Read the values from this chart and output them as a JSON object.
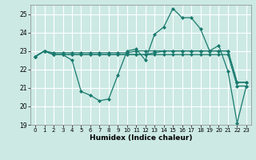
{
  "title": "",
  "xlabel": "Humidex (Indice chaleur)",
  "ylabel": "",
  "background_color": "#cce9e4",
  "grid_color": "#ffffff",
  "line_color": "#1a7a6e",
  "xlim": [
    -0.5,
    23.5
  ],
  "ylim": [
    19,
    25.5
  ],
  "yticks": [
    19,
    20,
    21,
    22,
    23,
    24,
    25
  ],
  "xticks": [
    0,
    1,
    2,
    3,
    4,
    5,
    6,
    7,
    8,
    9,
    10,
    11,
    12,
    13,
    14,
    15,
    16,
    17,
    18,
    19,
    20,
    21,
    22,
    23
  ],
  "series": [
    [
      22.7,
      23.0,
      22.8,
      22.8,
      22.5,
      20.8,
      20.6,
      20.3,
      20.4,
      21.7,
      23.0,
      23.1,
      22.5,
      23.9,
      24.3,
      25.3,
      24.8,
      24.8,
      24.2,
      23.0,
      23.3,
      21.9,
      19.1,
      21.1
    ],
    [
      22.7,
      23.0,
      22.8,
      22.8,
      22.8,
      22.8,
      22.8,
      22.8,
      22.8,
      22.8,
      22.8,
      22.8,
      22.8,
      22.9,
      23.0,
      23.0,
      23.0,
      23.0,
      23.0,
      23.0,
      23.0,
      23.0,
      21.3,
      21.3
    ],
    [
      22.7,
      23.0,
      22.9,
      22.9,
      22.9,
      22.9,
      22.9,
      22.9,
      22.9,
      22.9,
      22.9,
      23.0,
      23.0,
      23.0,
      23.0,
      23.0,
      23.0,
      23.0,
      23.0,
      23.0,
      23.0,
      23.0,
      21.3,
      21.3
    ],
    [
      22.7,
      23.0,
      22.8,
      22.8,
      22.8,
      22.8,
      22.8,
      22.8,
      22.8,
      22.8,
      22.8,
      22.8,
      22.8,
      22.8,
      22.8,
      22.8,
      22.8,
      22.8,
      22.8,
      22.8,
      22.8,
      22.8,
      21.1,
      21.1
    ]
  ]
}
